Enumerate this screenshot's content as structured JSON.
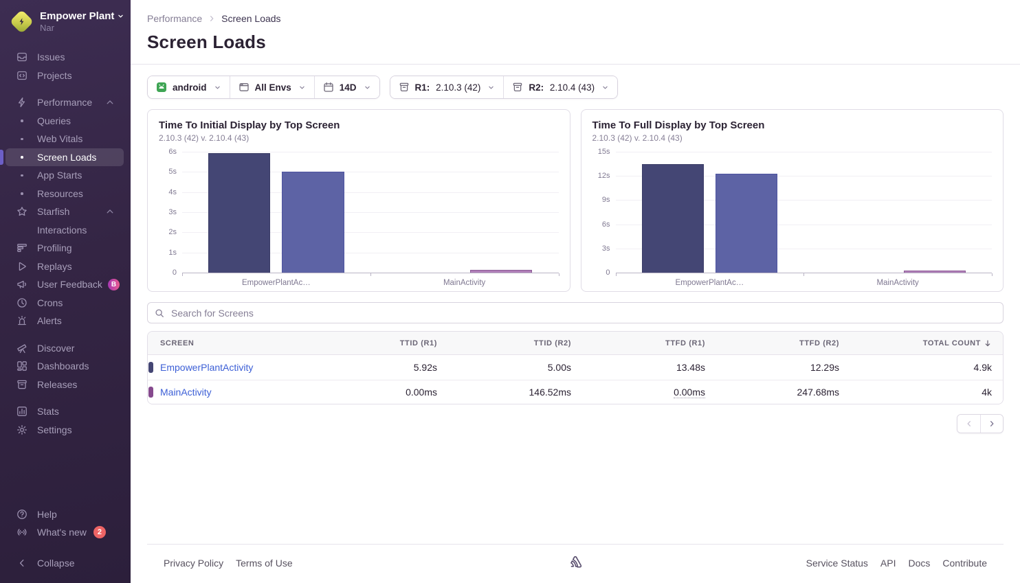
{
  "colors": {
    "accent_active": "#6c5fc7",
    "link": "#3c5fd6",
    "whats_new_badge": "#ee6465",
    "beta_badge_from": "#a737b4",
    "beta_badge_to": "#ea5a8f"
  },
  "sidebar": {
    "org": {
      "name": "Empower Plant",
      "subtitle": "Nar"
    },
    "sections": [
      {
        "items": [
          {
            "label": "Issues",
            "icon": "issues-icon"
          },
          {
            "label": "Projects",
            "icon": "projects-icon"
          }
        ]
      },
      {
        "items": [
          {
            "label": "Performance",
            "icon": "performance-icon",
            "chevron": "up"
          },
          {
            "label": "Queries",
            "sub": true
          },
          {
            "label": "Web Vitals",
            "sub": true
          },
          {
            "label": "Screen Loads",
            "sub": true,
            "active": true
          },
          {
            "label": "App Starts",
            "sub": true
          },
          {
            "label": "Resources",
            "sub": true
          },
          {
            "label": "Starfish",
            "icon": "star-icon",
            "chevron": "up"
          },
          {
            "label": "Interactions",
            "sub": true,
            "nodot": true
          },
          {
            "label": "Profiling",
            "icon": "profiling-icon"
          },
          {
            "label": "Replays",
            "icon": "replays-icon"
          },
          {
            "label": "User Feedback",
            "icon": "feedback-icon",
            "beta_badge": "B"
          },
          {
            "label": "Crons",
            "icon": "crons-icon"
          },
          {
            "label": "Alerts",
            "icon": "alerts-icon"
          }
        ]
      },
      {
        "items": [
          {
            "label": "Discover",
            "icon": "discover-icon"
          },
          {
            "label": "Dashboards",
            "icon": "dashboards-icon"
          },
          {
            "label": "Releases",
            "icon": "releases-icon"
          }
        ]
      },
      {
        "items": [
          {
            "label": "Stats",
            "icon": "stats-icon"
          },
          {
            "label": "Settings",
            "icon": "settings-icon"
          }
        ]
      }
    ],
    "footer_items": [
      {
        "label": "Help",
        "icon": "help-icon"
      },
      {
        "label": "What's new",
        "icon": "whats-new-icon",
        "count_badge": "2"
      }
    ],
    "collapse_label": "Collapse"
  },
  "header": {
    "breadcrumb": [
      "Performance",
      "Screen Loads"
    ],
    "title": "Screen Loads"
  },
  "filters": {
    "groups": [
      [
        {
          "icon": "android-icon",
          "label": "android"
        },
        {
          "icon": "environments-icon",
          "label": "All Envs"
        },
        {
          "icon": "calendar-icon",
          "label": "14D"
        }
      ],
      [
        {
          "icon": "release-icon",
          "prefix": "R1:",
          "value": "2.10.3 (42)"
        },
        {
          "icon": "release-icon",
          "prefix": "R2:",
          "value": "2.10.4 (43)"
        }
      ]
    ]
  },
  "chart_data": [
    {
      "type": "bar",
      "title": "Time To Initial Display by Top Screen",
      "subtitle": "2.10.3 (42) v. 2.10.4 (43)",
      "categories": [
        "EmpowerPlantAc…",
        "MainActivity"
      ],
      "series": [
        {
          "name": "2.10.3 (42)",
          "values": [
            5.92,
            0
          ],
          "fills": [
            "#444674",
            "#444674"
          ],
          "borders": [
            "#3a3c66",
            "#3a3c66"
          ]
        },
        {
          "name": "2.10.4 (43)",
          "values": [
            5.0,
            0.147
          ],
          "fills": [
            "#5d63a5",
            "#b07fb8"
          ],
          "borders": [
            "#4d53a0",
            "#8c5a96"
          ]
        }
      ],
      "ylim": [
        0,
        6
      ],
      "yticks": [
        "0",
        "1s",
        "2s",
        "3s",
        "4s",
        "5s",
        "6s"
      ],
      "grid": true,
      "legend": "none"
    },
    {
      "type": "bar",
      "title": "Time To Full Display by Top Screen",
      "subtitle": "2.10.3 (42) v. 2.10.4 (43)",
      "categories": [
        "EmpowerPlantAc…",
        "MainActivity"
      ],
      "series": [
        {
          "name": "2.10.3 (42)",
          "values": [
            13.48,
            0
          ],
          "fills": [
            "#444674",
            "#444674"
          ],
          "borders": [
            "#3a3c66",
            "#3a3c66"
          ]
        },
        {
          "name": "2.10.4 (43)",
          "values": [
            12.29,
            0.248
          ],
          "fills": [
            "#5d63a5",
            "#b07fb8"
          ],
          "borders": [
            "#4d53a0",
            "#8c5a96"
          ]
        }
      ],
      "ylim": [
        0,
        15
      ],
      "yticks": [
        "0",
        "3s",
        "6s",
        "9s",
        "12s",
        "15s"
      ],
      "grid": true,
      "legend": "none"
    }
  ],
  "search": {
    "placeholder": "Search for Screens"
  },
  "table": {
    "columns": [
      {
        "label": "SCREEN",
        "align": "left"
      },
      {
        "label": "TTID (R1)",
        "align": "right"
      },
      {
        "label": "TTID (R2)",
        "align": "right"
      },
      {
        "label": "TTFD (R1)",
        "align": "right"
      },
      {
        "label": "TTFD (R2)",
        "align": "right"
      },
      {
        "label": "TOTAL COUNT",
        "align": "right",
        "sort": "desc"
      }
    ],
    "rows": [
      {
        "chip_color": "#444674",
        "screen": "EmpowerPlantActivity",
        "cells": [
          "5.92s",
          "5.00s",
          "13.48s",
          "12.29s",
          "4.9k"
        ],
        "dotted": []
      },
      {
        "chip_color": "#864a8e",
        "screen": "MainActivity",
        "cells": [
          "0.00ms",
          "146.52ms",
          "0.00ms",
          "247.68ms",
          "4k"
        ],
        "dotted": [
          2
        ]
      }
    ]
  },
  "pagination": {
    "prev_disabled": true,
    "next_disabled": false
  },
  "page_footer": {
    "left_links": [
      "Privacy Policy",
      "Terms of Use"
    ],
    "right_links": [
      "Service Status",
      "API",
      "Docs",
      "Contribute"
    ]
  }
}
